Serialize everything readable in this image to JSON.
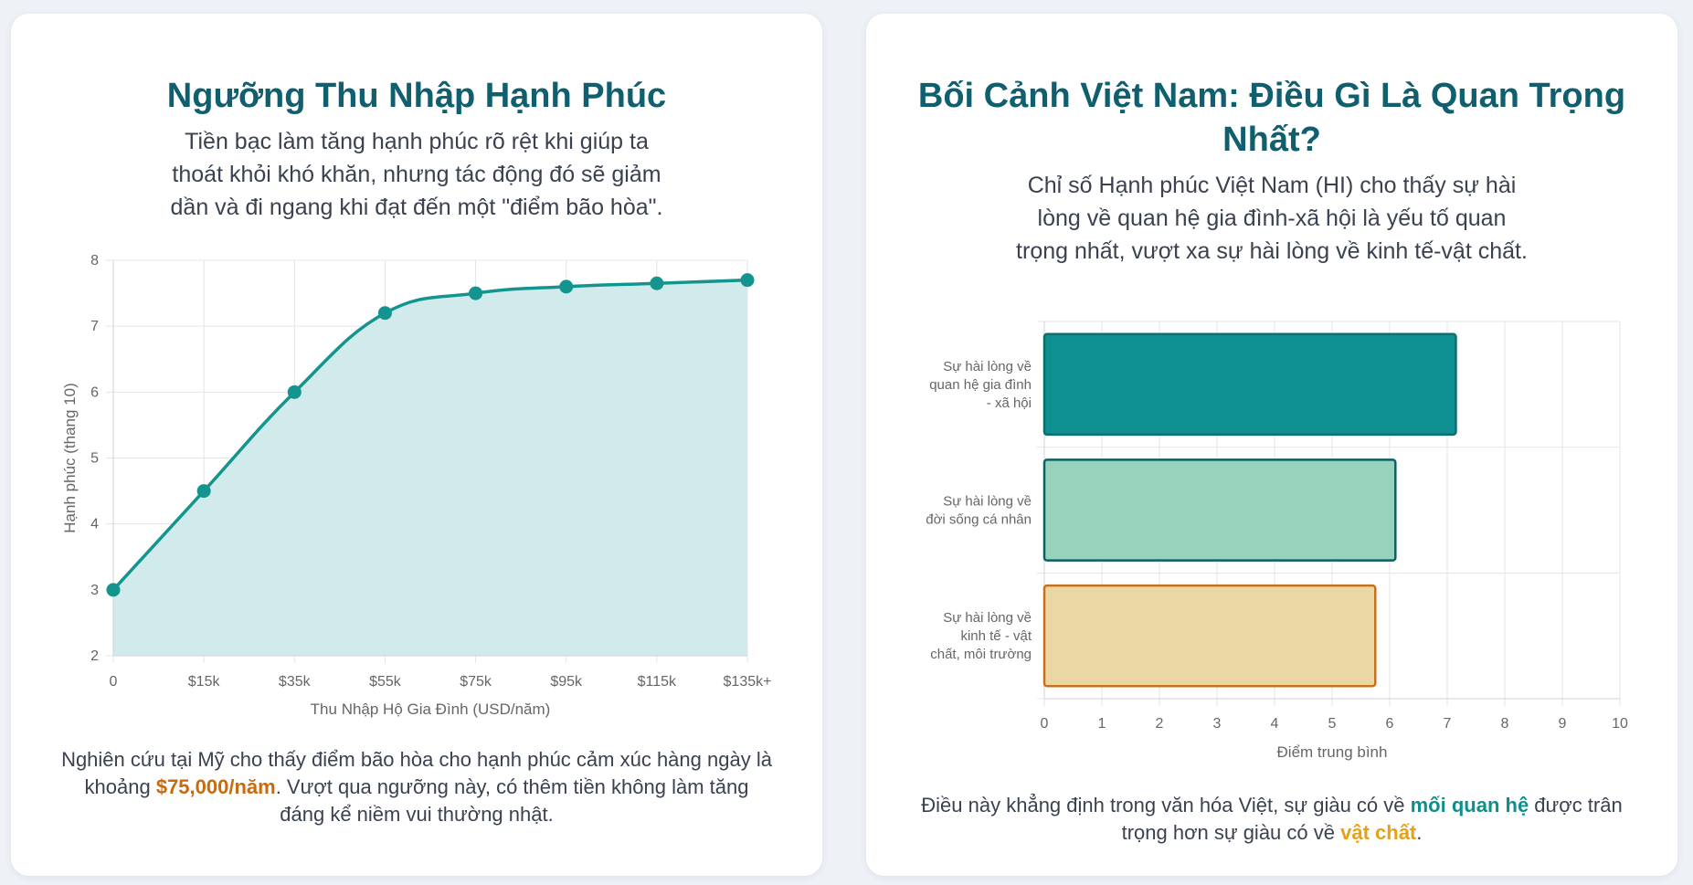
{
  "left_card": {
    "title": "Ngưỡng Thu Nhập Hạnh Phúc",
    "subtitle_lines": [
      "Tiền bạc làm tăng hạnh phúc rõ rệt khi giúp ta",
      "thoát khỏi khó khăn, nhưng tác động đó sẽ giảm",
      "dần và đi ngang khi đạt đến một \"điểm bão hòa\"."
    ],
    "footer": {
      "line1": "Nghiên cứu tại Mỹ cho thấy điểm bão hòa cho hạnh phúc cảm xúc hàng ngày là",
      "line2_before": "khoảng ",
      "line2_highlight": "$75,000/năm",
      "line2_after": ". Vượt qua ngưỡng này, có thêm tiền không làm tăng",
      "line3": "đáng kể niềm vui thường nhật."
    }
  },
  "right_card": {
    "title_line1": "Bối Cảnh Việt Nam: Điều Gì Là Quan Trọng",
    "title_line2": "Nhất?",
    "subtitle_lines": [
      "Chỉ số Hạnh phúc Việt Nam (HI) cho thấy sự hài",
      "lòng về quan hệ gia đình-xã hội là yếu tố quan",
      "trọng nhất, vượt xa sự hài lòng về kinh tế-vật chất."
    ],
    "footer": {
      "line1_before": "Điều này khẳng định trong văn hóa Việt, sự giàu có về ",
      "line1_highlight": "mối quan hệ",
      "line1_after": " được trân",
      "line2_before": "trọng hơn sự giàu có về ",
      "line2_highlight": "vật chất",
      "line2_after": "."
    }
  },
  "chart_data": [
    {
      "type": "area",
      "categories": [
        "0",
        "$15k",
        "$35k",
        "$55k",
        "$75k",
        "$95k",
        "$115k",
        "$135k+"
      ],
      "values": [
        3.0,
        4.5,
        6.0,
        7.2,
        7.5,
        7.6,
        7.65,
        7.7
      ],
      "xlabel": "Thu Nhập Hộ Gia Đình (USD/năm)",
      "ylabel": "Hạnh phúc (thang 10)",
      "ylim": [
        2,
        8
      ],
      "yticks": [
        2,
        3,
        4,
        5,
        6,
        7,
        8
      ],
      "grid": true,
      "colors": {
        "line": "#14948f",
        "fill": "#cfe9ea",
        "point": "#14948f"
      }
    },
    {
      "type": "bar",
      "orientation": "horizontal",
      "categories": [
        [
          "Sự hài lòng về",
          "quan hệ gia đình",
          "- xã hội"
        ],
        [
          "Sự hài lòng về",
          "đời sống cá nhân"
        ],
        [
          "Sự hài lòng về",
          "kinh tế - vật",
          "chất, môi trường"
        ]
      ],
      "values": [
        7.15,
        6.1,
        5.75
      ],
      "xlabel": "Điểm trung bình",
      "xlim": [
        0,
        10
      ],
      "xticks": [
        0,
        1,
        2,
        3,
        4,
        5,
        6,
        7,
        8,
        9,
        10
      ],
      "grid": true,
      "colors": [
        {
          "fill": "#0f9090",
          "stroke": "#0b6e6f"
        },
        {
          "fill": "#96d2bc",
          "stroke": "#0e5f60"
        },
        {
          "fill": "#ebd7a4",
          "stroke": "#c9701a"
        }
      ]
    }
  ]
}
